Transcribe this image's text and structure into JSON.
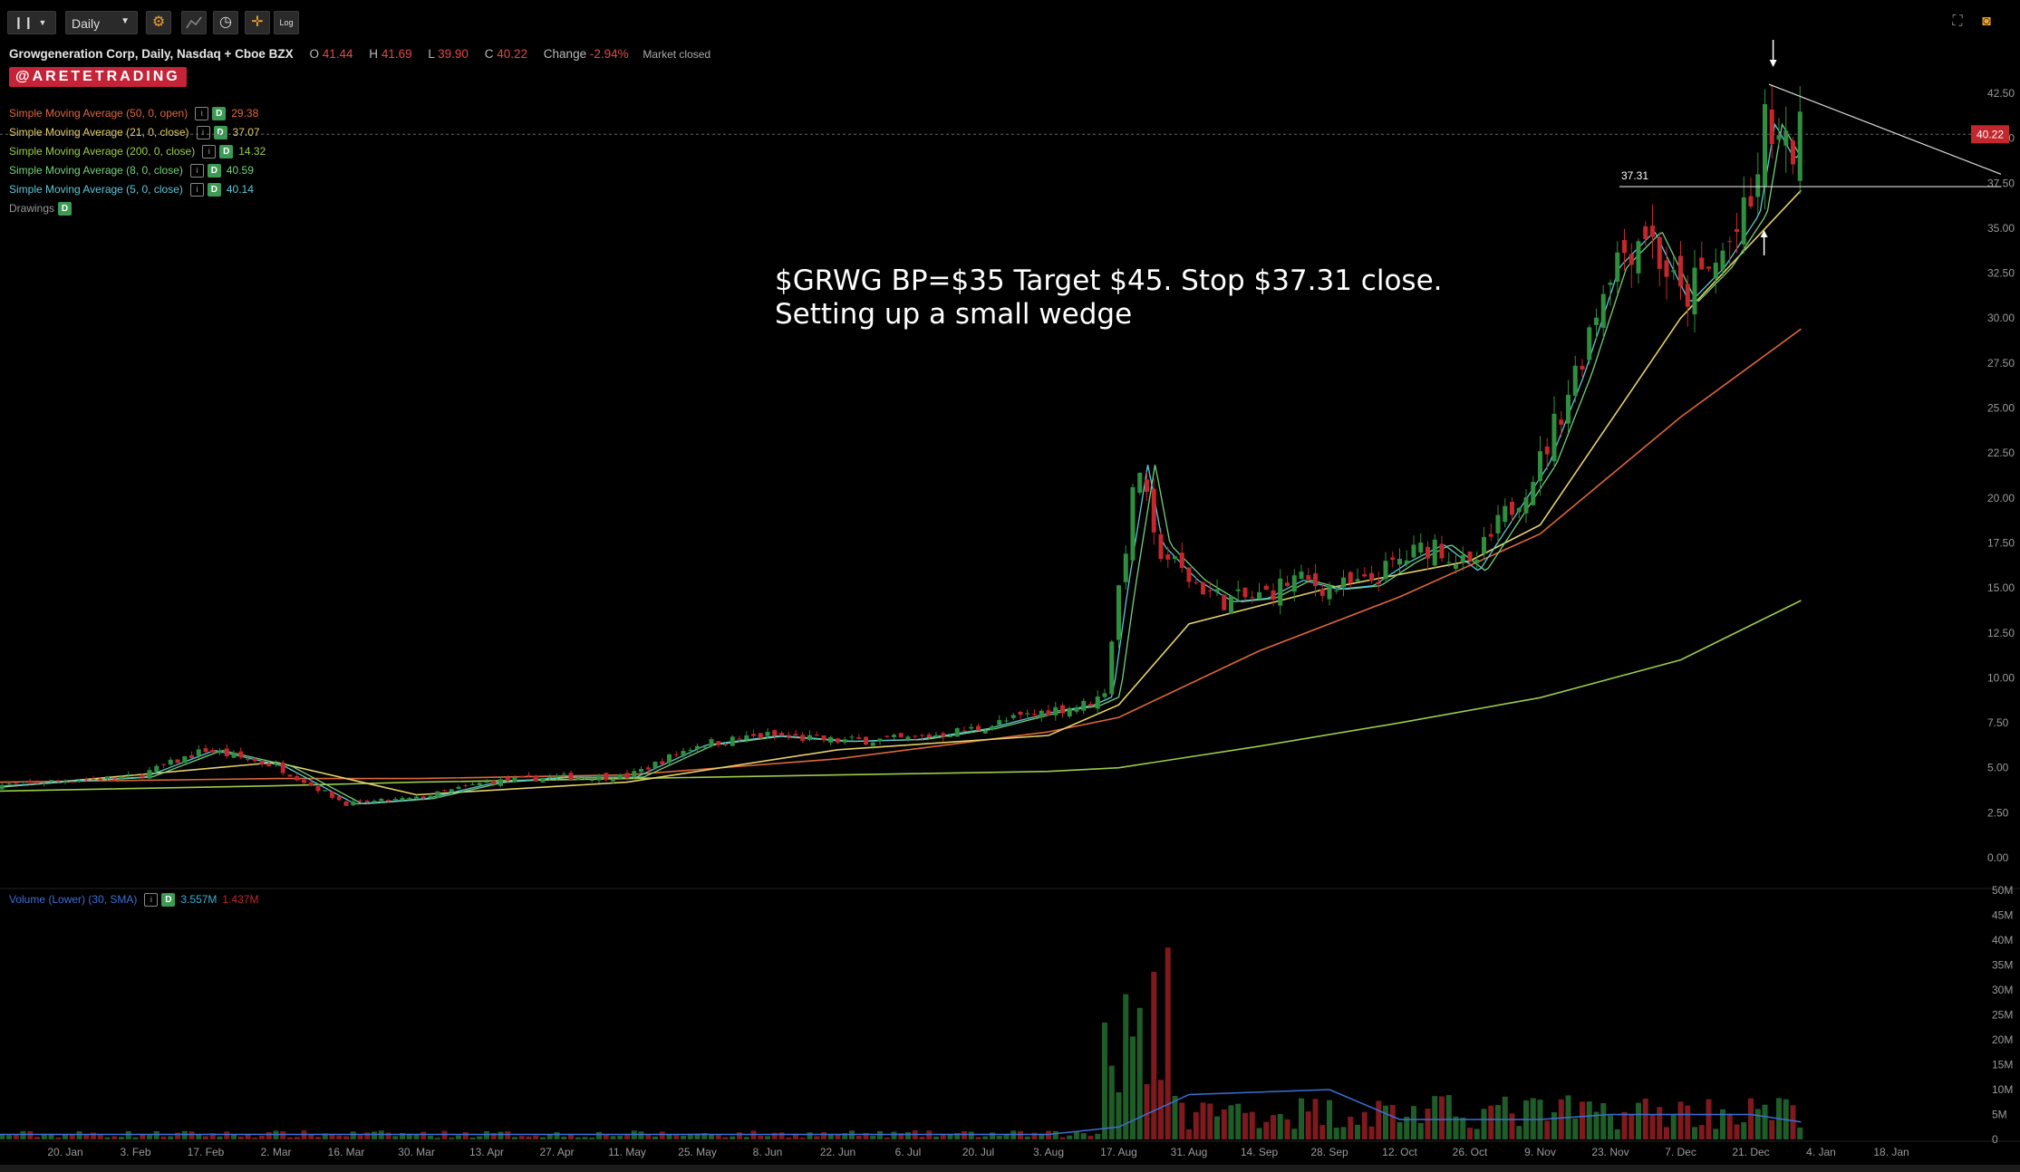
{
  "toolbar": {
    "chart_style_icon": "candles-icon",
    "timeframe": "Daily",
    "settings_icon": "gear-icon",
    "indicator_icon": "indicator-icon",
    "clock_icon": "clock-icon",
    "crosshair_icon": "crosshair-icon",
    "log_label": "Log",
    "fullscreen_icon": "fullscreen-icon",
    "camera_icon": "camera-icon"
  },
  "header": {
    "title": "Growgeneration Corp, Daily, Nasdaq + Cboe BZX",
    "open_label": "O",
    "open": "41.44",
    "high_label": "H",
    "high": "41.69",
    "low_label": "L",
    "low": "39.90",
    "close_label": "C",
    "close": "40.22",
    "change_label": "Change",
    "change": "-2.94%",
    "market_status": "Market closed"
  },
  "watermark": "@ARETETRADING",
  "studies": [
    {
      "label": "Simple Moving Average (50, 0, open)",
      "value": "29.38",
      "color": "#e0673a"
    },
    {
      "label": "Simple Moving Average (21, 0, close)",
      "value": "37.07",
      "color": "#e6d06a"
    },
    {
      "label": "Simple Moving Average (200, 0, close)",
      "value": "14.32",
      "color": "#9ccc4a"
    },
    {
      "label": "Simple Moving Average (8, 0, close)",
      "value": "40.59",
      "color": "#73d27a"
    },
    {
      "label": "Simple Moving Average (5, 0, close)",
      "value": "40.14",
      "color": "#5cc8d8"
    }
  ],
  "drawings_label": "Drawings",
  "study_info_glyph": "i",
  "study_d_glyph": "D",
  "annotation": {
    "line1": "$GRWG BP=$35 Target $45. Stop $37.31 close.",
    "line2": "Setting up a small wedge"
  },
  "volume_study": {
    "label": "Volume (Lower) (30, SMA)",
    "value1": "3.557M",
    "value2": "1.437M"
  },
  "colors": {
    "up": "#2f8f3e",
    "down": "#c2272d",
    "price_tag": "#c2272d",
    "volume_sma": "#3b6fd6"
  },
  "chart_data": {
    "type": "candlestick",
    "price_axis": {
      "ticks": [
        "42.50",
        "40.00",
        "37.50",
        "35.00",
        "32.50",
        "30.00",
        "27.50",
        "25.00",
        "22.50",
        "20.00",
        "17.50",
        "15.00",
        "12.50",
        "10.00",
        "7.50",
        "5.00",
        "2.50",
        "0.00"
      ],
      "ylim": [
        0,
        43
      ]
    },
    "last_price_tag": "40.22",
    "horizontal_level": {
      "label": "37.31",
      "value": 37.31
    },
    "date_axis": [
      "20. Jan",
      "3. Feb",
      "17. Feb",
      "2. Mar",
      "16. Mar",
      "30. Mar",
      "13. Apr",
      "27. Apr",
      "11. May",
      "25. May",
      "8. Jun",
      "22. Jun",
      "6. Jul",
      "20. Jul",
      "3. Aug",
      "17. Aug",
      "31. Aug",
      "14. Sep",
      "28. Sep",
      "12. Oct",
      "26. Oct",
      "9. Nov",
      "23. Nov",
      "7. Dec",
      "21. Dec",
      "4. Jan",
      "18. Jan"
    ],
    "close_path": {
      "x": [
        "6 Jan",
        "20 Jan",
        "3 Feb",
        "17 Feb",
        "2 Mar",
        "16 Mar",
        "30 Mar",
        "13 Apr",
        "27 Apr",
        "11 May",
        "25 May",
        "8 Jun",
        "22 Jun",
        "6 Jul",
        "20 Jul",
        "3 Aug",
        "10 Aug",
        "14 Aug",
        "17 Aug",
        "21 Aug",
        "24 Aug",
        "31 Aug",
        "7 Sep",
        "14 Sep",
        "21 Sep",
        "28 Sep",
        "5 Oct",
        "12 Oct",
        "19 Oct",
        "26 Oct",
        "2 Nov",
        "9 Nov",
        "16 Nov",
        "23 Nov",
        "30 Nov",
        "7 Dec",
        "14 Dec",
        "21 Dec",
        "24 Dec",
        "28 Dec",
        "31 Dec"
      ],
      "y": [
        4.0,
        4.3,
        4.5,
        6.0,
        5.1,
        3.0,
        3.3,
        4.2,
        4.5,
        4.5,
        6.3,
        6.8,
        6.5,
        6.6,
        7.2,
        8.2,
        8.5,
        9.0,
        15,
        22,
        17.5,
        15.5,
        14.3,
        14.5,
        15.5,
        15.0,
        15.2,
        16.5,
        17.5,
        16.0,
        19,
        22,
        27,
        33,
        35,
        31,
        33,
        36,
        41,
        39,
        40.2
      ]
    },
    "moving_averages": [
      {
        "name": "SMA 50",
        "color": "#e0673a",
        "x": [
          "6 Jan",
          "2 Mar",
          "30 Mar",
          "11 May",
          "22 Jun",
          "3 Aug",
          "17 Aug",
          "14 Sep",
          "12 Oct",
          "9 Nov",
          "7 Dec",
          "31 Dec"
        ],
        "y": [
          4.2,
          4.4,
          4.4,
          4.6,
          5.5,
          7.0,
          7.8,
          11.5,
          14.5,
          18.0,
          24.5,
          29.4
        ]
      },
      {
        "name": "SMA 200",
        "color": "#9ccc4a",
        "x": [
          "6 Jan",
          "2 Mar",
          "30 Mar",
          "11 May",
          "22 Jun",
          "3 Aug",
          "17 Aug",
          "14 Sep",
          "12 Oct",
          "9 Nov",
          "7 Dec",
          "31 Dec"
        ],
        "y": [
          3.7,
          4.0,
          4.2,
          4.4,
          4.6,
          4.8,
          5.0,
          6.2,
          7.5,
          8.9,
          11.0,
          14.3
        ]
      },
      {
        "name": "SMA 21",
        "color": "#e6d06a",
        "x": [
          "6 Jan",
          "2 Mar",
          "30 Mar",
          "11 May",
          "22 Jun",
          "3 Aug",
          "17 Aug",
          "31 Aug",
          "28 Sep",
          "26 Oct",
          "9 Nov",
          "7 Dec",
          "31 Dec"
        ],
        "y": [
          3.9,
          5.3,
          3.5,
          4.2,
          6.0,
          6.8,
          8.5,
          13.0,
          15.0,
          16.5,
          18.5,
          30.0,
          37.1
        ]
      }
    ],
    "volume_axis": {
      "ticks": [
        "50M",
        "45M",
        "40M",
        "35M",
        "30M",
        "25M",
        "20M",
        "15M",
        "10M",
        "5M",
        "0"
      ],
      "ylim": [
        0,
        50
      ]
    },
    "volume_sma_path": {
      "x": [
        "6 Jan",
        "3 Aug",
        "17 Aug",
        "31 Aug",
        "28 Sep",
        "12 Oct",
        "9 Nov",
        "23 Nov",
        "21 Dec",
        "31 Dec"
      ],
      "y": [
        1.0,
        1.0,
        2.5,
        9.0,
        10.0,
        4.0,
        4.0,
        5.0,
        5.0,
        3.5
      ]
    }
  }
}
